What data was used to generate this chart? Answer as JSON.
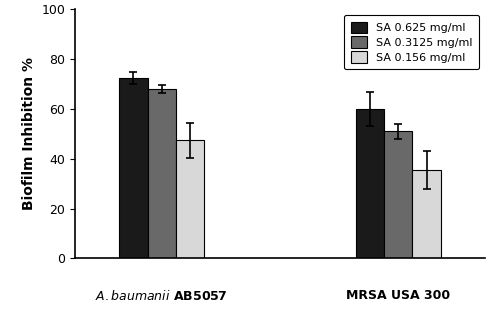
{
  "series": [
    {
      "label": "SA 0.625 mg/ml",
      "color": "#1a1a1a",
      "values": [
        72.5,
        60.0
      ],
      "errors": [
        2.5,
        7.0
      ]
    },
    {
      "label": "SA 0.3125 mg/ml",
      "color": "#696969",
      "values": [
        68.0,
        51.0
      ],
      "errors": [
        1.5,
        3.0
      ]
    },
    {
      "label": "SA 0.156 mg/ml",
      "color": "#d8d8d8",
      "values": [
        47.5,
        35.5
      ],
      "errors": [
        7.0,
        7.5
      ]
    }
  ],
  "ylabel": "Biofilm Inhibition %",
  "ylim": [
    0,
    100
  ],
  "yticks": [
    0,
    20,
    40,
    60,
    80,
    100
  ],
  "bar_width": 0.18,
  "group_centers": [
    1.0,
    2.5
  ],
  "background_color": "#ffffff",
  "edgecolor": "#000000",
  "capsize": 3
}
